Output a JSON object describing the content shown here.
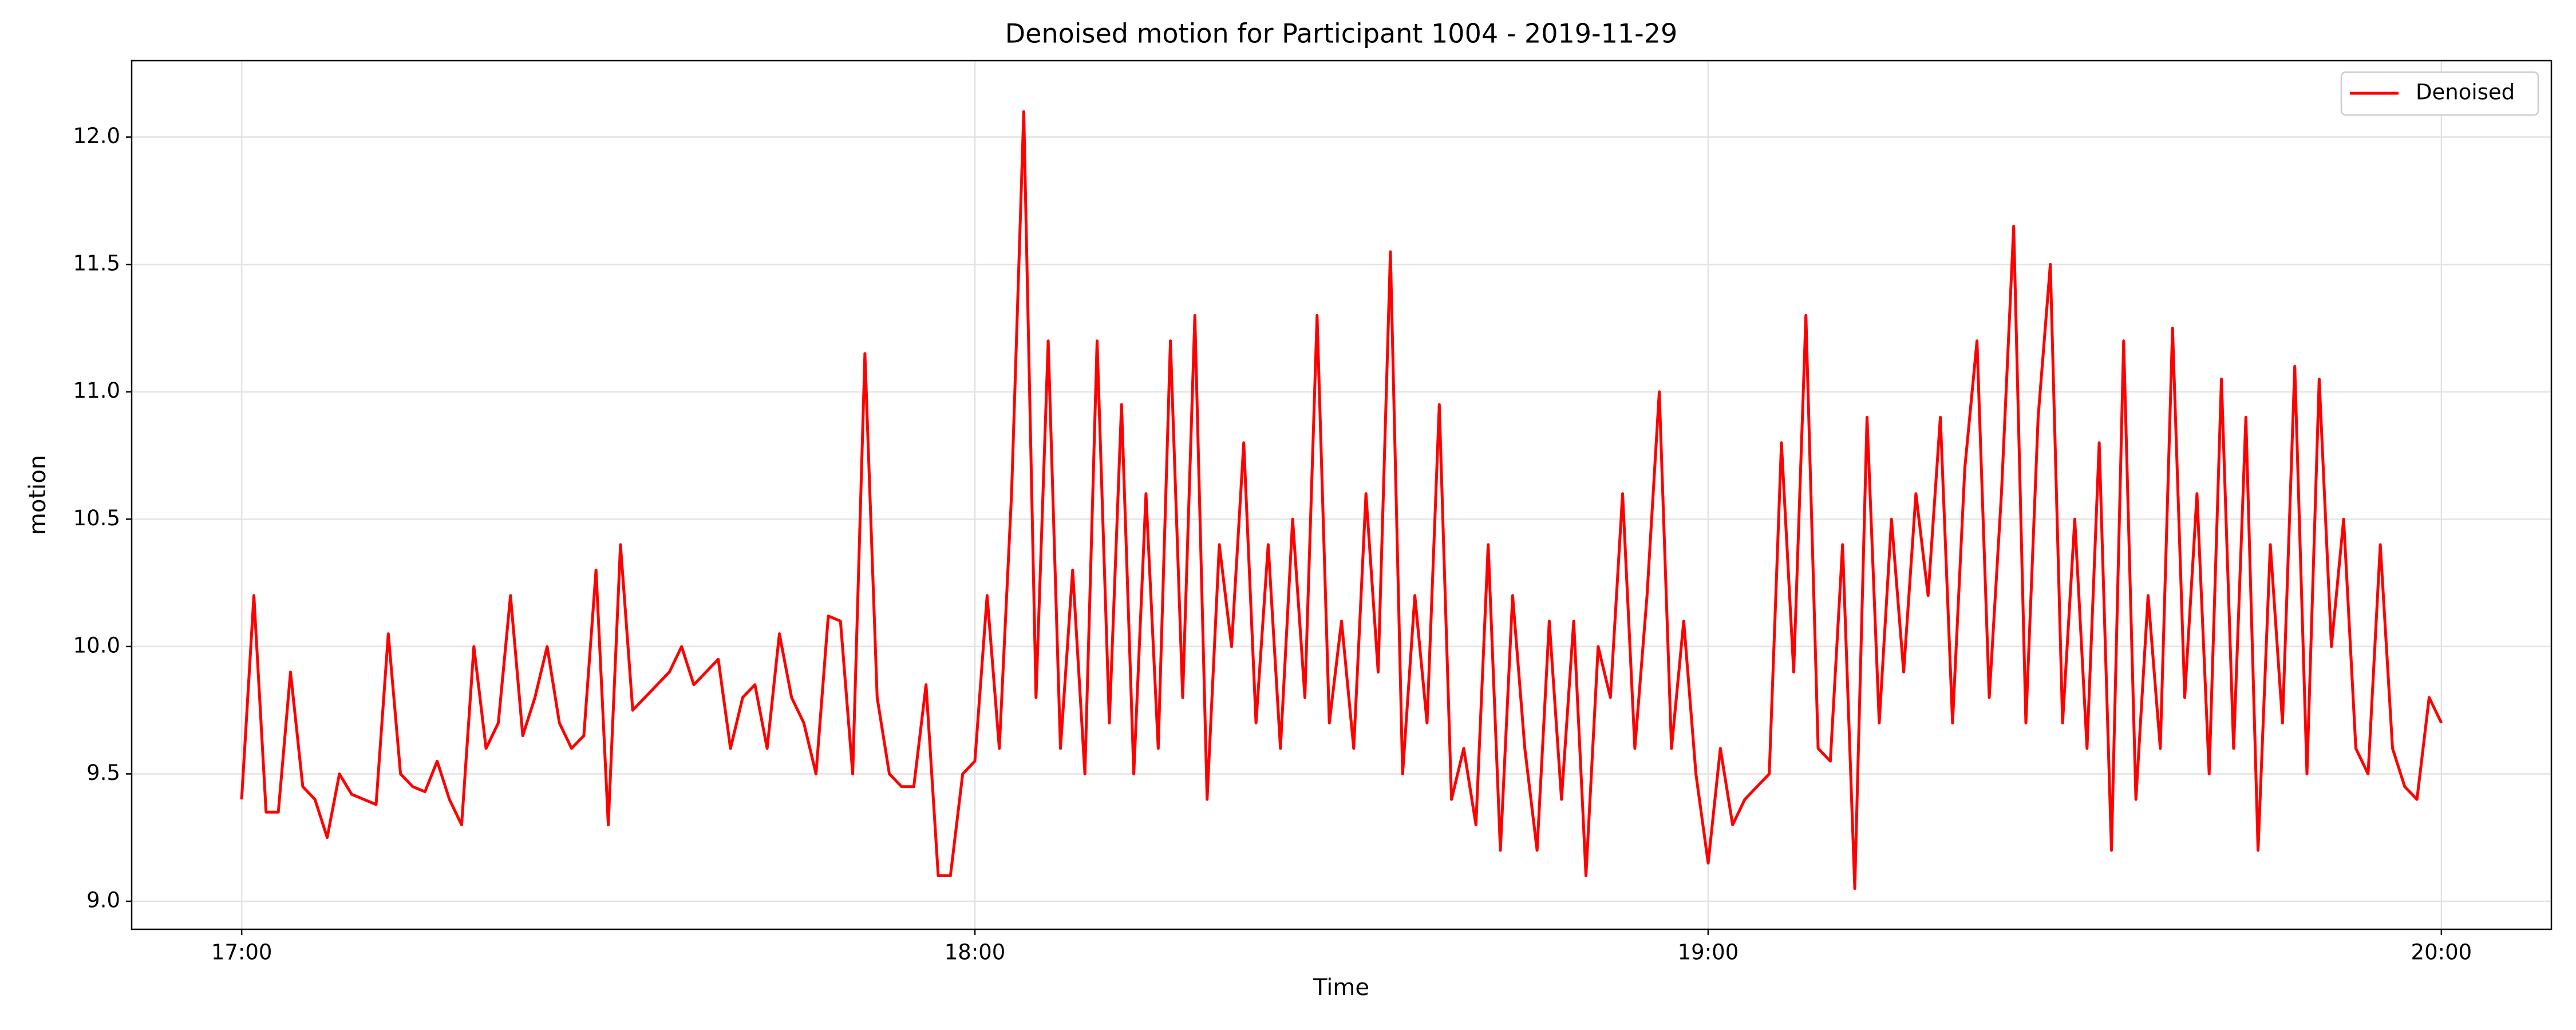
{
  "chart_data": {
    "type": "line",
    "title": "Denoised motion for Participant 1004 - 2019-11-29",
    "xlabel": "Time",
    "ylabel": "motion",
    "x": [
      "17:00",
      "17:01",
      "17:02",
      "17:03",
      "17:04",
      "17:05",
      "17:06",
      "17:07",
      "17:08",
      "17:09",
      "17:10",
      "17:11",
      "17:12",
      "17:13",
      "17:14",
      "17:15",
      "17:16",
      "17:17",
      "17:18",
      "17:19",
      "17:20",
      "17:21",
      "17:22",
      "17:23",
      "17:24",
      "17:25",
      "17:26",
      "17:27",
      "17:28",
      "17:29",
      "17:30",
      "17:31",
      "17:32",
      "17:33",
      "17:34",
      "17:35",
      "17:36",
      "17:37",
      "17:38",
      "17:39",
      "17:40",
      "17:41",
      "17:42",
      "17:43",
      "17:44",
      "17:45",
      "17:46",
      "17:47",
      "17:48",
      "17:49",
      "17:50",
      "17:51",
      "17:52",
      "17:53",
      "17:54",
      "17:55",
      "17:56",
      "17:57",
      "17:58",
      "17:59",
      "18:00",
      "18:01",
      "18:02",
      "18:03",
      "18:04",
      "18:05",
      "18:06",
      "18:07",
      "18:08",
      "18:09",
      "18:10",
      "18:11",
      "18:12",
      "18:13",
      "18:14",
      "18:15",
      "18:16",
      "18:17",
      "18:18",
      "18:19",
      "18:20",
      "18:21",
      "18:22",
      "18:23",
      "18:24",
      "18:25",
      "18:26",
      "18:27",
      "18:28",
      "18:29",
      "18:30",
      "18:31",
      "18:32",
      "18:33",
      "18:34",
      "18:35",
      "18:36",
      "18:37",
      "18:38",
      "18:39",
      "18:40",
      "18:41",
      "18:42",
      "18:43",
      "18:44",
      "18:45",
      "18:46",
      "18:47",
      "18:48",
      "18:49",
      "18:50",
      "18:51",
      "18:52",
      "18:53",
      "18:54",
      "18:55",
      "18:56",
      "18:57",
      "18:58",
      "18:59",
      "19:00",
      "19:01",
      "19:02",
      "19:03",
      "19:04",
      "19:05",
      "19:06",
      "19:07",
      "19:08",
      "19:09",
      "19:10",
      "19:11",
      "19:12",
      "19:13",
      "19:14",
      "19:15",
      "19:16",
      "19:17",
      "19:18",
      "19:19",
      "19:20",
      "19:21",
      "19:22",
      "19:23",
      "19:24",
      "19:25",
      "19:26",
      "19:27",
      "19:28",
      "19:29",
      "19:30",
      "19:31",
      "19:32",
      "19:33",
      "19:34",
      "19:35",
      "19:36",
      "19:37",
      "19:38",
      "19:39",
      "19:40",
      "19:41",
      "19:42",
      "19:43",
      "19:44",
      "19:45",
      "19:46",
      "19:47",
      "19:48",
      "19:49",
      "19:50",
      "19:51",
      "19:52",
      "19:53",
      "19:54",
      "19:55",
      "19:56",
      "19:57",
      "19:58",
      "19:59",
      "20:00"
    ],
    "series": [
      {
        "name": "Denoised",
        "color": "#ff0000",
        "values": [
          9.4,
          10.2,
          9.35,
          9.35,
          9.9,
          9.45,
          9.4,
          9.25,
          9.5,
          9.42,
          9.4,
          9.38,
          10.05,
          9.5,
          9.45,
          9.43,
          9.55,
          9.4,
          9.3,
          10.0,
          9.6,
          9.7,
          10.2,
          9.65,
          9.8,
          10.0,
          9.7,
          9.6,
          9.65,
          10.3,
          9.3,
          10.4,
          9.75,
          9.8,
          9.85,
          9.9,
          10.0,
          9.85,
          9.9,
          9.95,
          9.6,
          9.8,
          9.85,
          9.6,
          10.05,
          9.8,
          9.7,
          9.5,
          10.12,
          10.1,
          9.5,
          11.15,
          9.8,
          9.5,
          9.45,
          9.45,
          9.85,
          9.1,
          9.1,
          9.5,
          9.55,
          10.2,
          9.6,
          10.6,
          12.1,
          9.8,
          11.2,
          9.6,
          10.3,
          9.5,
          11.2,
          9.7,
          10.95,
          9.5,
          10.6,
          9.6,
          11.2,
          9.8,
          11.3,
          9.4,
          10.4,
          10.0,
          10.8,
          9.7,
          10.4,
          9.6,
          10.5,
          9.8,
          11.3,
          9.7,
          10.1,
          9.6,
          10.6,
          9.9,
          11.55,
          9.5,
          10.2,
          9.7,
          10.95,
          9.4,
          9.6,
          9.3,
          10.4,
          9.2,
          10.2,
          9.6,
          9.2,
          10.1,
          9.4,
          10.1,
          9.1,
          10.0,
          9.8,
          10.6,
          9.6,
          10.2,
          11.0,
          9.6,
          10.1,
          9.5,
          9.15,
          9.6,
          9.3,
          9.4,
          9.45,
          9.5,
          10.8,
          9.9,
          11.3,
          9.6,
          9.55,
          10.4,
          9.05,
          10.9,
          9.7,
          10.5,
          9.9,
          10.6,
          10.2,
          10.9,
          9.7,
          10.7,
          11.2,
          9.8,
          10.6,
          11.65,
          9.7,
          10.9,
          11.5,
          9.7,
          10.5,
          9.6,
          10.8,
          9.2,
          11.2,
          9.4,
          10.2,
          9.6,
          11.25,
          9.8,
          10.6,
          9.5,
          11.05,
          9.6,
          10.9,
          9.2,
          10.4,
          9.7,
          11.1,
          9.5,
          11.05,
          10.0,
          10.5,
          9.6,
          9.5,
          10.4,
          9.6,
          9.45,
          9.4,
          9.8,
          9.7
        ]
      }
    ],
    "xlim": [
      "16:51",
      "20:09"
    ],
    "xticks": [
      "17:00",
      "18:00",
      "19:00",
      "20:00"
    ],
    "ylim": [
      8.89,
      12.3
    ],
    "yticks": [
      {
        "value": 9,
        "label": "9.0"
      },
      9.5,
      {
        "value": 10,
        "label": "10.0"
      },
      10.5,
      {
        "value": 11,
        "label": "11.0"
      },
      11.5,
      {
        "value": 12,
        "label": "12.0"
      }
    ],
    "grid": true,
    "legend": "upper right"
  }
}
